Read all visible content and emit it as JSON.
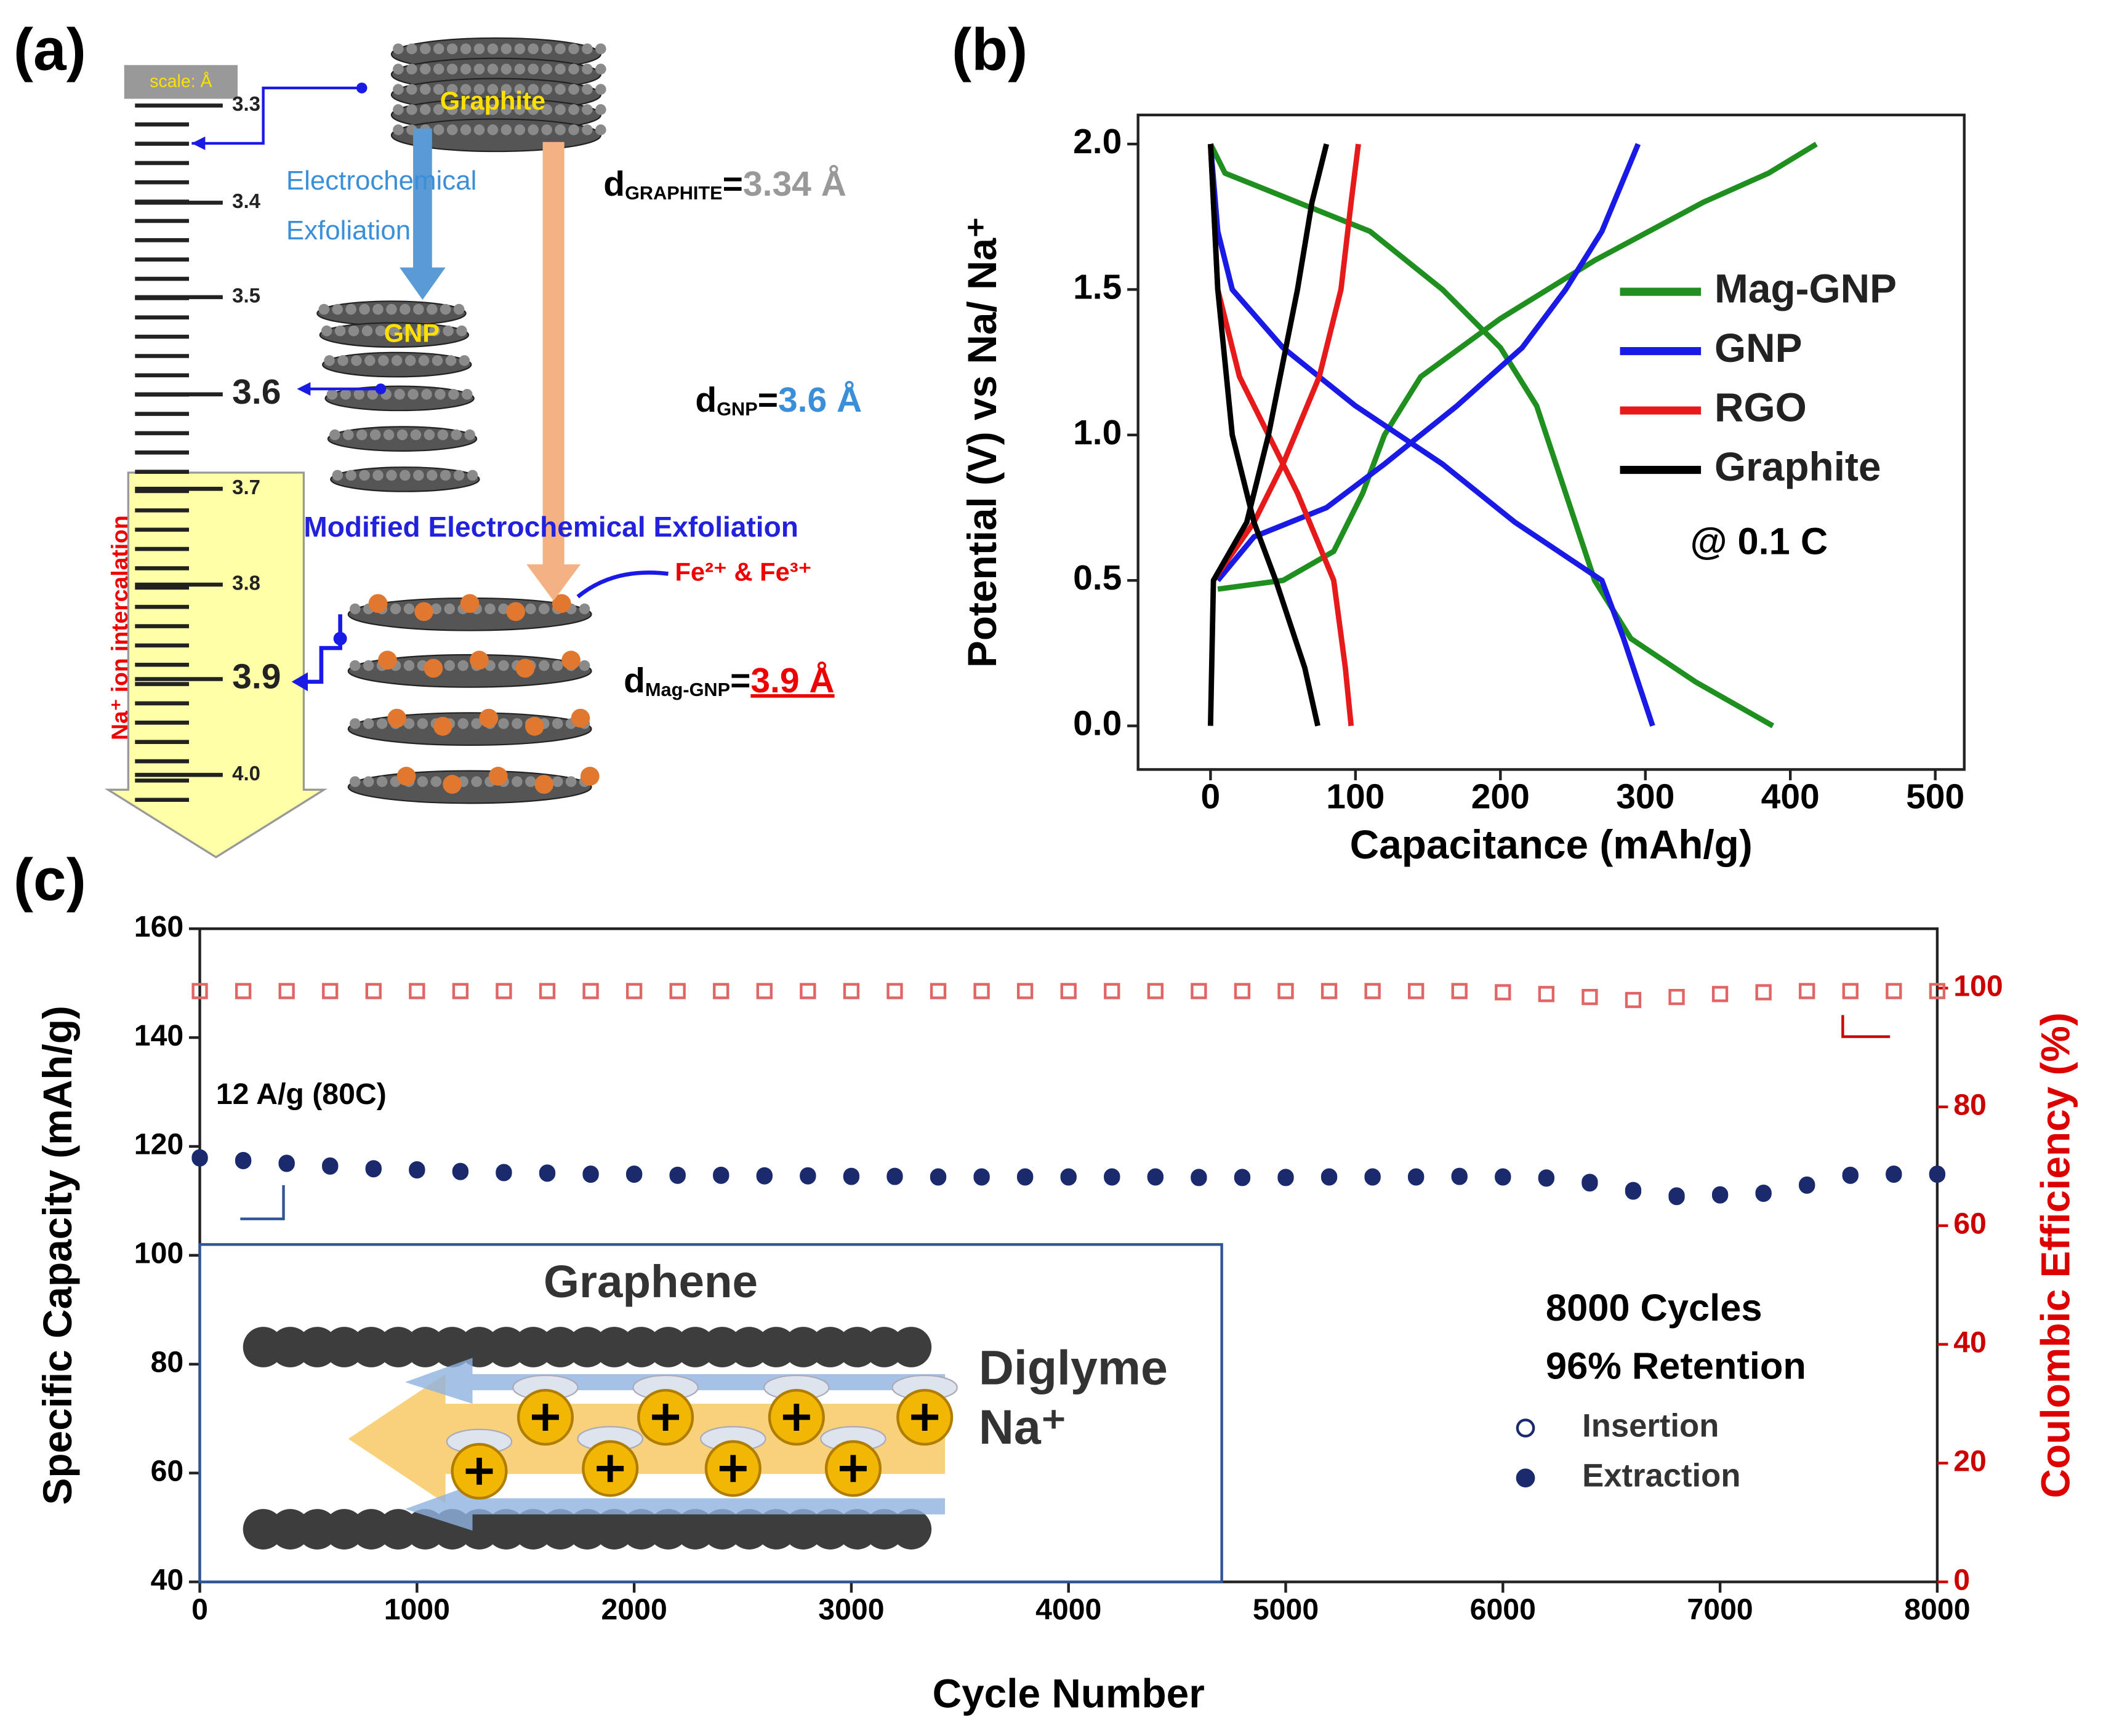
{
  "panel_labels": [
    "(a)",
    "(b)",
    "(c)"
  ],
  "diagram": {
    "scale_title": "scale: Å",
    "scale_labels": [
      "3.3",
      "3.4",
      "3.5",
      "3.6",
      "3.7",
      "3.8",
      "3.9",
      "4.0"
    ],
    "graphite": "Graphite",
    "exfoliation": [
      "Electrochemical",
      "Exfoliation"
    ],
    "gnp": "GNP",
    "modified": "Modified Electrochemical Exfoliation",
    "ions": "Fe²⁺ & Fe³⁺",
    "intercalation": "Na⁺ ion intercalation",
    "d_graphite": [
      "d",
      "GRAPHITE",
      "=",
      "3.34 Å"
    ],
    "d_gnp": [
      "d",
      "GNP",
      "=",
      "3.6 Å"
    ],
    "d_mag": [
      "d",
      "Mag-GNP",
      "=",
      "3.9 Å"
    ]
  },
  "inset": {
    "title": "Graphene",
    "labels": [
      "Diglyme",
      "Na⁺"
    ]
  },
  "chart_data": [
    {
      "type": "line",
      "xlabel": "Capacitance (mAh/g)",
      "ylabel": "Potential (V) vs Na/ Na⁺",
      "xlim": [
        -50,
        520
      ],
      "ylim": [
        -0.15,
        2.1
      ],
      "xticks": [
        0,
        100,
        200,
        300,
        400,
        500
      ],
      "yticks": [
        {
          "value": 0,
          "label": "0.0"
        },
        0.5,
        {
          "value": 1,
          "label": "1.0"
        },
        1.5,
        {
          "value": 2,
          "label": "2.0"
        }
      ],
      "legend": "upper right",
      "annotations": [
        "@ 0.1 C"
      ],
      "series": [
        {
          "name": "Mag-GNP",
          "color": "#1f8f1f",
          "x": [
            0,
            10,
            60,
            110,
            160,
            200,
            225,
            245,
            265,
            290,
            335,
            388,
            null,
            5,
            50,
            85,
            105,
            120,
            145,
            200,
            265,
            340,
            385,
            418
          ],
          "values": [
            2,
            1.9,
            1.8,
            1.7,
            1.5,
            1.3,
            1.1,
            0.8,
            0.5,
            0.3,
            0.15,
            0,
            null,
            0.47,
            0.5,
            0.6,
            0.8,
            1.0,
            1.2,
            1.4,
            1.6,
            1.8,
            1.9,
            2.0
          ]
        },
        {
          "name": "GNP",
          "color": "#1a1ae6",
          "x": [
            0,
            5,
            15,
            50,
            100,
            160,
            210,
            270,
            285,
            305,
            null,
            5,
            30,
            80,
            120,
            170,
            215,
            245,
            270,
            295
          ],
          "values": [
            2,
            1.7,
            1.5,
            1.3,
            1.1,
            0.9,
            0.7,
            0.5,
            0.3,
            0,
            null,
            0.5,
            0.65,
            0.75,
            0.9,
            1.1,
            1.3,
            1.5,
            1.7,
            2
          ]
        },
        {
          "name": "RGO",
          "color": "#e61a1a",
          "x": [
            0,
            5,
            20,
            40,
            60,
            85,
            93,
            97,
            null,
            2,
            30,
            50,
            75,
            90,
            97,
            102
          ],
          "values": [
            2,
            1.5,
            1.2,
            1.0,
            0.8,
            0.5,
            0.2,
            0,
            null,
            0.5,
            0.7,
            0.9,
            1.2,
            1.5,
            1.8,
            2
          ]
        },
        {
          "name": "Graphite",
          "color": "#000000",
          "x": [
            0,
            5,
            15,
            30,
            45,
            65,
            74,
            null,
            0,
            2,
            25,
            40,
            60,
            70,
            80
          ],
          "values": [
            2,
            1.5,
            1.0,
            0.7,
            0.5,
            0.2,
            0,
            null,
            0,
            0.5,
            0.7,
            1.0,
            1.5,
            1.8,
            2
          ]
        }
      ]
    },
    {
      "type": "scatter",
      "xlabel": "Cycle Number",
      "ylabel": "Specific Capacity (mAh/g)",
      "y2label": "Coulombic Efficiency (%)",
      "xlim": [
        0,
        8000
      ],
      "ylim": [
        40,
        160
      ],
      "y2lim": [
        0,
        110
      ],
      "xticks": [
        0,
        1000,
        2000,
        3000,
        4000,
        5000,
        6000,
        7000,
        8000
      ],
      "yticks": [
        40,
        60,
        80,
        100,
        120,
        140,
        160
      ],
      "y2ticks": [
        0,
        20,
        40,
        60,
        80,
        100
      ],
      "annotations": [
        "12 A/g (80C)",
        "8000 Cycles",
        "96% Retention"
      ],
      "x": [
        0,
        200,
        400,
        600,
        800,
        1000,
        1200,
        1400,
        1600,
        1800,
        2000,
        2200,
        2400,
        2600,
        2800,
        3000,
        3200,
        3400,
        3600,
        3800,
        4000,
        4200,
        4400,
        4600,
        4800,
        5000,
        5200,
        5400,
        5600,
        5800,
        6000,
        6200,
        6400,
        6600,
        6800,
        7000,
        7200,
        7400,
        7600,
        7800,
        8000
      ],
      "series": [
        {
          "name": "Insertion",
          "marker": "open-circle",
          "color": "#1a2a6c",
          "values": [
            118,
            117.5,
            117,
            116.5,
            116,
            115.8,
            115.5,
            115.3,
            115.2,
            115,
            115,
            114.8,
            114.8,
            114.7,
            114.7,
            114.6,
            114.6,
            114.5,
            114.5,
            114.5,
            114.5,
            114.5,
            114.5,
            114.4,
            114.4,
            114.4,
            114.5,
            114.5,
            114.5,
            114.6,
            114.5,
            114.3,
            113.5,
            112,
            111,
            111.2,
            111.5,
            113,
            114.8,
            115,
            115
          ]
        },
        {
          "name": "Extraction",
          "marker": "filled-circle",
          "color": "#1a2a6c",
          "values": [
            117.8,
            117.3,
            116.8,
            116.3,
            115.8,
            115.6,
            115.3,
            115.1,
            115,
            114.8,
            114.8,
            114.6,
            114.6,
            114.5,
            114.5,
            114.4,
            114.4,
            114.3,
            114.3,
            114.3,
            114.3,
            114.3,
            114.3,
            114.2,
            114.2,
            114.2,
            114.3,
            114.3,
            114.3,
            114.4,
            114.3,
            114.1,
            113.2,
            111.7,
            110.7,
            111,
            111.3,
            112.8,
            114.6,
            114.8,
            114.8
          ]
        },
        {
          "marker": "open-square",
          "color": "#e06666",
          "axis": "y2",
          "values": [
            99.5,
            99.5,
            99.5,
            99.5,
            99.5,
            99.5,
            99.5,
            99.5,
            99.5,
            99.5,
            99.5,
            99.5,
            99.5,
            99.5,
            99.5,
            99.5,
            99.5,
            99.5,
            99.5,
            99.5,
            99.5,
            99.5,
            99.5,
            99.5,
            99.5,
            99.5,
            99.5,
            99.5,
            99.5,
            99.5,
            99.3,
            99,
            98.5,
            98,
            98.5,
            99,
            99.3,
            99.5,
            99.5,
            99.5,
            99.5
          ]
        }
      ]
    }
  ]
}
